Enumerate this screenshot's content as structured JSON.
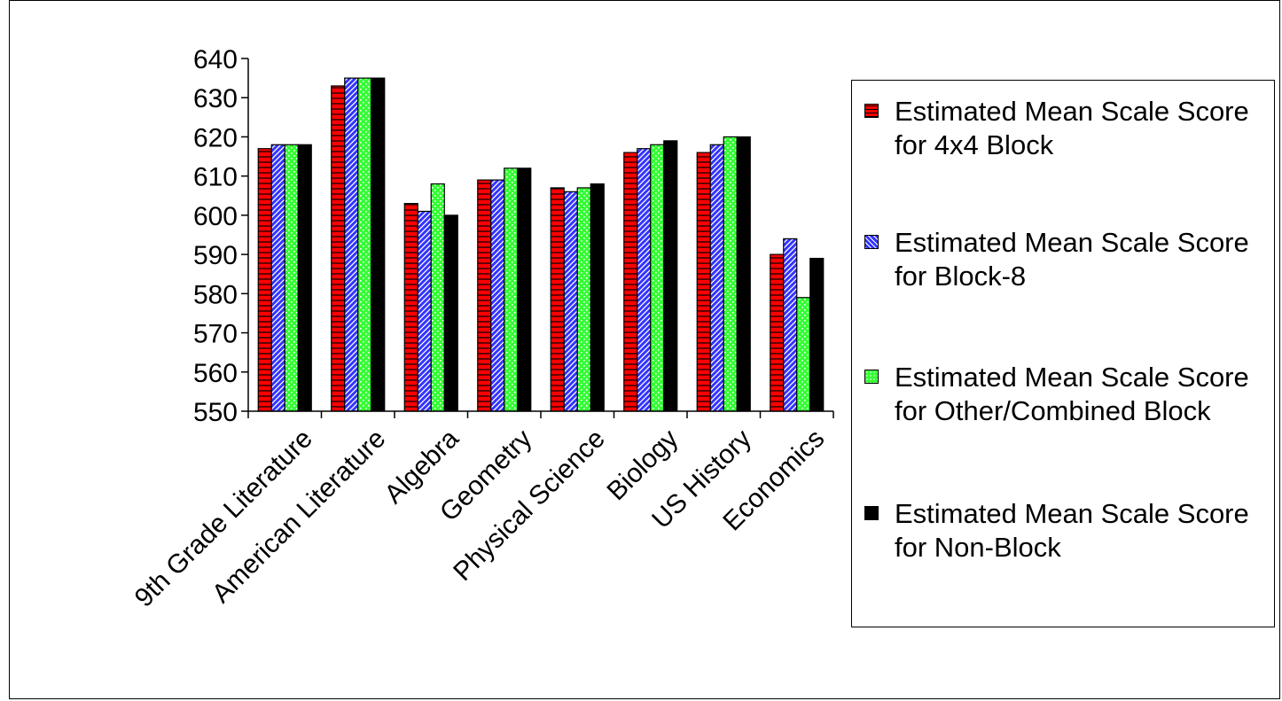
{
  "chart_data": {
    "type": "bar",
    "categories": [
      "9th Grade Literature",
      "American Literature",
      "Algebra",
      "Geometry",
      "Physical Science",
      "Biology",
      "US History",
      "Economics"
    ],
    "series": [
      {
        "name": "Estimated Mean Scale Score for 4x4 Block",
        "color": "#ff0000",
        "pattern": "horizontal-lines",
        "values": [
          617,
          633,
          603,
          609,
          607,
          616,
          616,
          590
        ]
      },
      {
        "name": "Estimated Mean Scale Score for Block-8",
        "color": "#3333ff",
        "pattern": "diagonal-lines",
        "values": [
          618,
          635,
          601,
          609,
          606,
          617,
          618,
          594
        ]
      },
      {
        "name": "Estimated Mean Scale Score for Other/Combined Block",
        "color": "#33ff33",
        "pattern": "dots",
        "values": [
          618,
          635,
          608,
          612,
          607,
          618,
          620,
          579
        ]
      },
      {
        "name": "Estimated Mean Scale Score for Non-Block",
        "color": "#000000",
        "pattern": "solid",
        "values": [
          618,
          635,
          600,
          612,
          608,
          619,
          620,
          589
        ]
      }
    ],
    "ylim": [
      550,
      640
    ],
    "yticks": [
      "550",
      "560",
      "570",
      "580",
      "590",
      "600",
      "610",
      "620",
      "630",
      "640"
    ],
    "grid": false,
    "legend_position": "right"
  }
}
